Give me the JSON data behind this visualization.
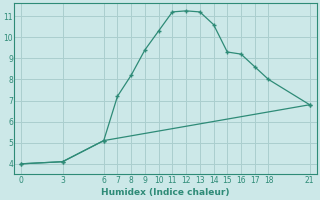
{
  "xlabel": "Humidex (Indice chaleur)",
  "line1_x": [
    0,
    3,
    6,
    7,
    8,
    9,
    10,
    11,
    12,
    13,
    14,
    15,
    16,
    17,
    18,
    21
  ],
  "line1_y": [
    4.0,
    4.1,
    5.1,
    7.2,
    8.2,
    9.4,
    10.3,
    11.2,
    11.25,
    11.2,
    10.6,
    9.3,
    9.2,
    8.6,
    8.0,
    6.8
  ],
  "line2_x": [
    0,
    3,
    6,
    21
  ],
  "line2_y": [
    4.0,
    4.1,
    5.1,
    6.8
  ],
  "color": "#2e8b77",
  "bg_color": "#cce8e8",
  "grid_color": "#aacece",
  "xlim": [
    -0.5,
    21.5
  ],
  "ylim": [
    3.5,
    11.6
  ],
  "xticks": [
    0,
    3,
    6,
    7,
    8,
    9,
    10,
    11,
    12,
    13,
    14,
    15,
    16,
    17,
    18,
    21
  ],
  "yticks": [
    4,
    5,
    6,
    7,
    8,
    9,
    10,
    11
  ],
  "marker": "+"
}
